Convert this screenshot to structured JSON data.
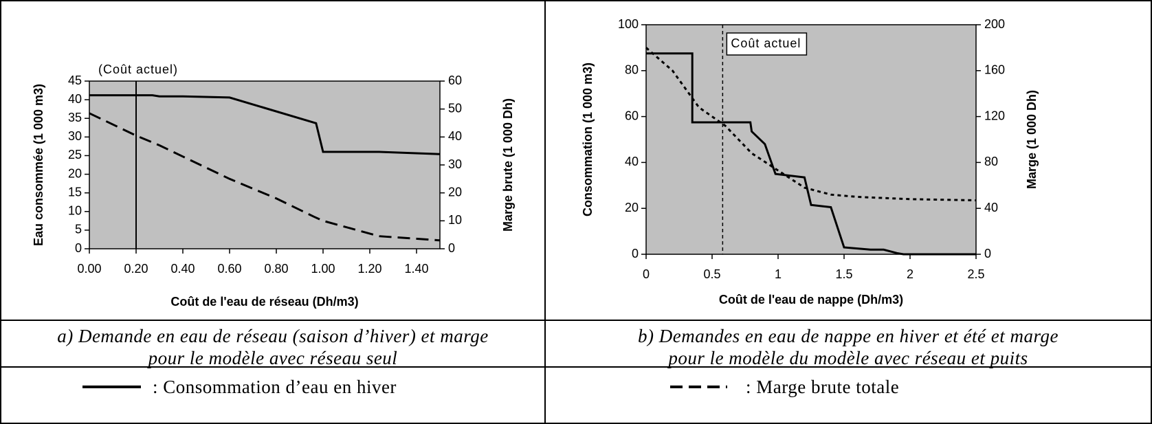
{
  "chart_data": [
    {
      "type": "line",
      "xlabel": "Coût de l'eau de réseau (Dh/m3)",
      "ylabel": "Eau consommée  (1 000 m3)",
      "y2label": "Marge brute (1 000 Dh)",
      "xlim": [
        0,
        1.5
      ],
      "xticks": [
        {
          "value": 0,
          "label": "0.00"
        },
        {
          "value": 0.2,
          "label": "0.20"
        },
        {
          "value": 0.4,
          "label": "0.40"
        },
        {
          "value": 0.6,
          "label": "0.60"
        },
        {
          "value": 0.8,
          "label": "0.80"
        },
        {
          "value": 1.0,
          "label": "1.00"
        },
        {
          "value": 1.2,
          "label": "1.20"
        },
        {
          "value": 1.4,
          "label": "1.40"
        }
      ],
      "ylim": [
        0,
        45
      ],
      "yticks": [
        0,
        5,
        10,
        15,
        20,
        25,
        30,
        35,
        40,
        45
      ],
      "y2lim": [
        0,
        60
      ],
      "y2ticks": [
        0,
        10,
        20,
        30,
        40,
        50,
        60
      ],
      "background": "#c0c0c0",
      "series": [
        {
          "color": "#000000",
          "style": "solid",
          "x": [
            0,
            0.27,
            0.3,
            0.4,
            0.6,
            0.97,
            1.0,
            1.24,
            1.5
          ],
          "values": [
            41.2,
            41.2,
            40.9,
            40.9,
            40.6,
            33.7,
            26,
            26,
            25.4
          ]
        },
        {
          "color": "#000000",
          "style": "dashed",
          "axis": "y2",
          "x": [
            0,
            0.2,
            0.3,
            0.4,
            0.6,
            0.8,
            0.96,
            1.0,
            1.24,
            1.5
          ],
          "values": [
            48.5,
            40.5,
            37,
            33,
            25,
            18,
            11.5,
            10,
            4.5,
            3
          ]
        }
      ],
      "annotation": {
        "text": "(Coût actuel)",
        "x": 0.2,
        "line_style": "solid",
        "boxed": false
      }
    },
    {
      "type": "line",
      "xlabel": "Coût de l'eau de nappe (Dh/m3)",
      "ylabel": "Consommation (1 000 m3)",
      "y2label": "Marge (1 000 Dh)",
      "xlim": [
        0,
        2.5
      ],
      "xticks": [
        0,
        0.5,
        1,
        1.5,
        2,
        2.5
      ],
      "ylim": [
        0,
        100
      ],
      "yticks": [
        0,
        20,
        40,
        60,
        80,
        100
      ],
      "y2lim": [
        0,
        200
      ],
      "y2ticks": [
        0,
        40,
        80,
        120,
        160,
        200
      ],
      "background": "#c0c0c0",
      "series": [
        {
          "color": "#000000",
          "style": "solid",
          "x": [
            0,
            0.35,
            0.35,
            0.79,
            0.8,
            0.9,
            0.98,
            1.2,
            1.25,
            1.4,
            1.5,
            1.7,
            1.8,
            1.9,
            1.95,
            2.5
          ],
          "values": [
            87.5,
            87.5,
            57.5,
            57.5,
            53.5,
            48,
            35,
            33.5,
            21.5,
            20.5,
            3,
            2,
            2,
            0.5,
            0,
            0
          ]
        },
        {
          "color": "#000000",
          "style": "dotted",
          "axis": "y2",
          "x": [
            0,
            0.2,
            0.4,
            0.6,
            0.8,
            1.0,
            1.2,
            1.4,
            1.6,
            2.0,
            2.5
          ],
          "values": [
            180,
            160,
            128,
            112,
            88,
            73,
            58,
            52,
            50,
            48,
            47
          ]
        }
      ],
      "annotation": {
        "text": "Coût actuel",
        "x": 0.58,
        "line_style": "dashed",
        "boxed": true
      }
    }
  ],
  "captions": [
    [
      "a) Demande en eau de réseau (saison d’hiver) et marge",
      "pour le modèle avec réseau seul"
    ],
    [
      "b) Demandes en eau de nappe en hiver et été et marge",
      "pour le modèle du modèle avec réseau et puits"
    ]
  ],
  "legend": [
    {
      "label": ": Consommation d’eau en hiver",
      "style": "solid"
    },
    {
      "label": ": Marge brute totale",
      "style": "dashed"
    }
  ]
}
